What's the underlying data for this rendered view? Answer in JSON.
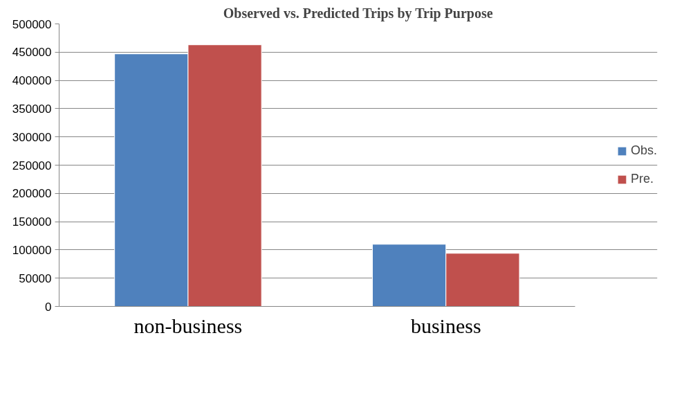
{
  "chart_data": {
    "type": "bar",
    "title": "Observed vs. Predicted Trips by Trip Purpose",
    "categories": [
      "non-business",
      "business"
    ],
    "series": [
      {
        "name": "Obs.",
        "color": "#4f81bd",
        "values": [
          447000,
          110000
        ]
      },
      {
        "name": "Pre.",
        "color": "#c0504d",
        "values": [
          463000,
          94000
        ]
      }
    ],
    "ylim": [
      0,
      500000
    ],
    "yticks": [
      {
        "value": 0,
        "label": "0"
      },
      {
        "value": 50000,
        "label": "50000"
      },
      {
        "value": 100000,
        "label": "100000"
      },
      {
        "value": 150000,
        "label": "150000"
      },
      {
        "value": 200000,
        "label": "200000"
      },
      {
        "value": 250000,
        "label": "250000"
      },
      {
        "value": 300000,
        "label": "300000"
      },
      {
        "value": 350000,
        "label": "350000"
      },
      {
        "value": 400000,
        "label": "400000"
      },
      {
        "value": 450000,
        "label": "450000"
      },
      {
        "value": 500000,
        "label": "500000"
      }
    ],
    "grid": "y",
    "legend": "right"
  }
}
